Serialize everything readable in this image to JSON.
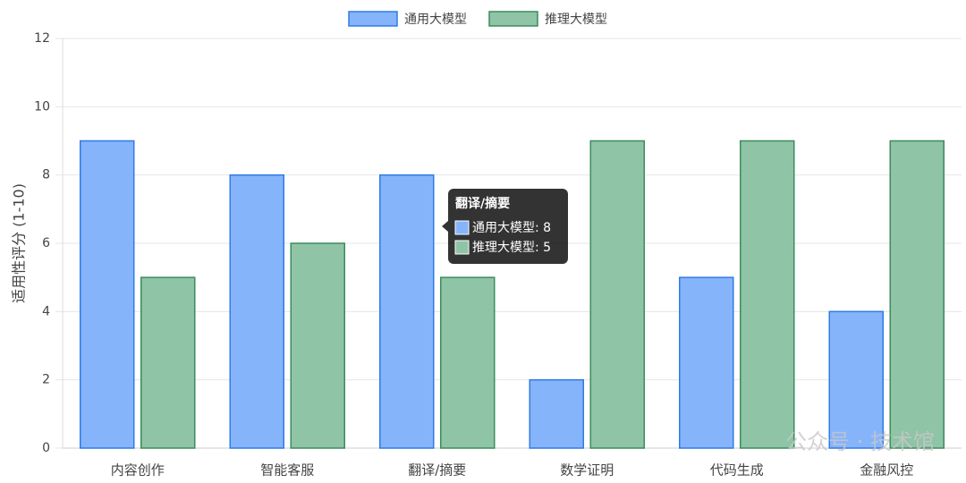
{
  "chart_data": {
    "type": "bar",
    "y_label": "适用性评分 (1-10)",
    "categories": [
      "内容创作",
      "智能客服",
      "翻译/摘要",
      "数学证明",
      "代码生成",
      "金融风控"
    ],
    "series": [
      {
        "name": "通用大模型",
        "color": "#86b4fb",
        "border": "#2f7be6",
        "values": [
          9,
          8,
          8,
          2,
          5,
          4
        ]
      },
      {
        "name": "推理大模型",
        "color": "#8fc4a7",
        "border": "#3b8c5c",
        "values": [
          5,
          6,
          5,
          9,
          9,
          9
        ]
      }
    ],
    "ylim": [
      0,
      12
    ],
    "yticks": [
      0,
      2,
      4,
      6,
      8,
      10,
      12
    ],
    "grid": true,
    "legend": "top",
    "tooltip": {
      "title": "翻译/摘要",
      "lines": [
        "通用大模型: 8",
        "推理大模型: 5"
      ]
    },
    "watermark": "公众号 · 技术馆"
  }
}
